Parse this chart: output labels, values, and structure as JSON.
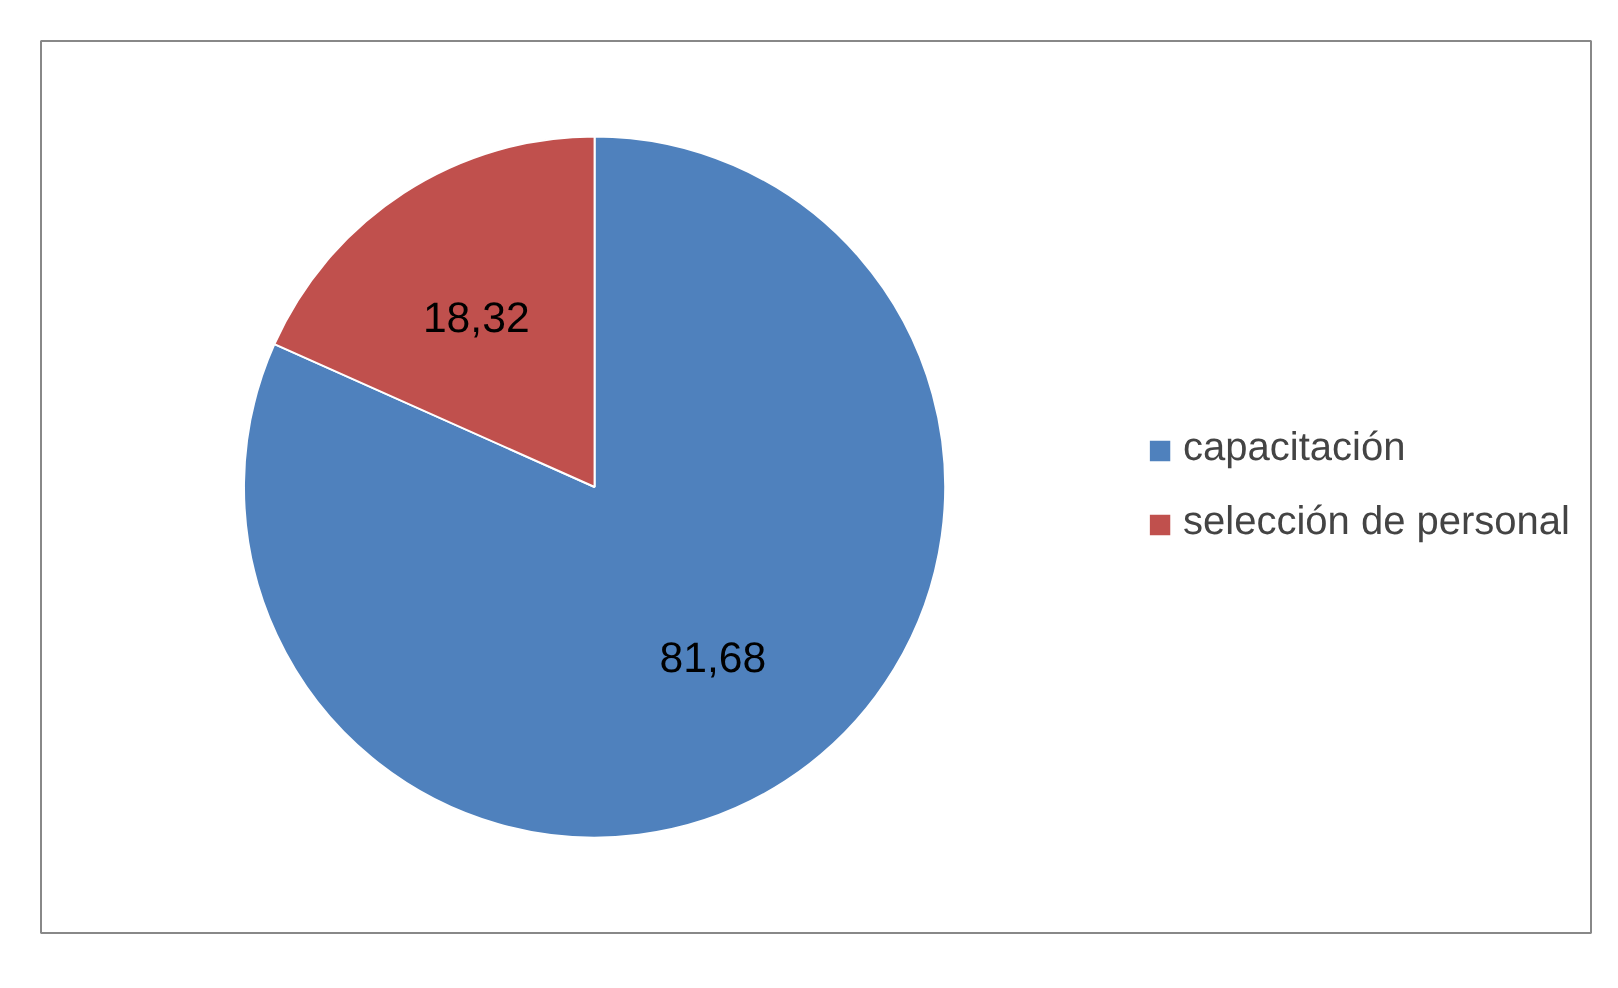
{
  "chart_data": {
    "type": "pie",
    "categories": [
      "capacitación",
      "selección de personal"
    ],
    "values": [
      81.68,
      18.32
    ],
    "colors": [
      "#4f81bd",
      "#c0504d"
    ],
    "value_labels": [
      "81,68",
      "18,32"
    ],
    "legend": "right"
  }
}
